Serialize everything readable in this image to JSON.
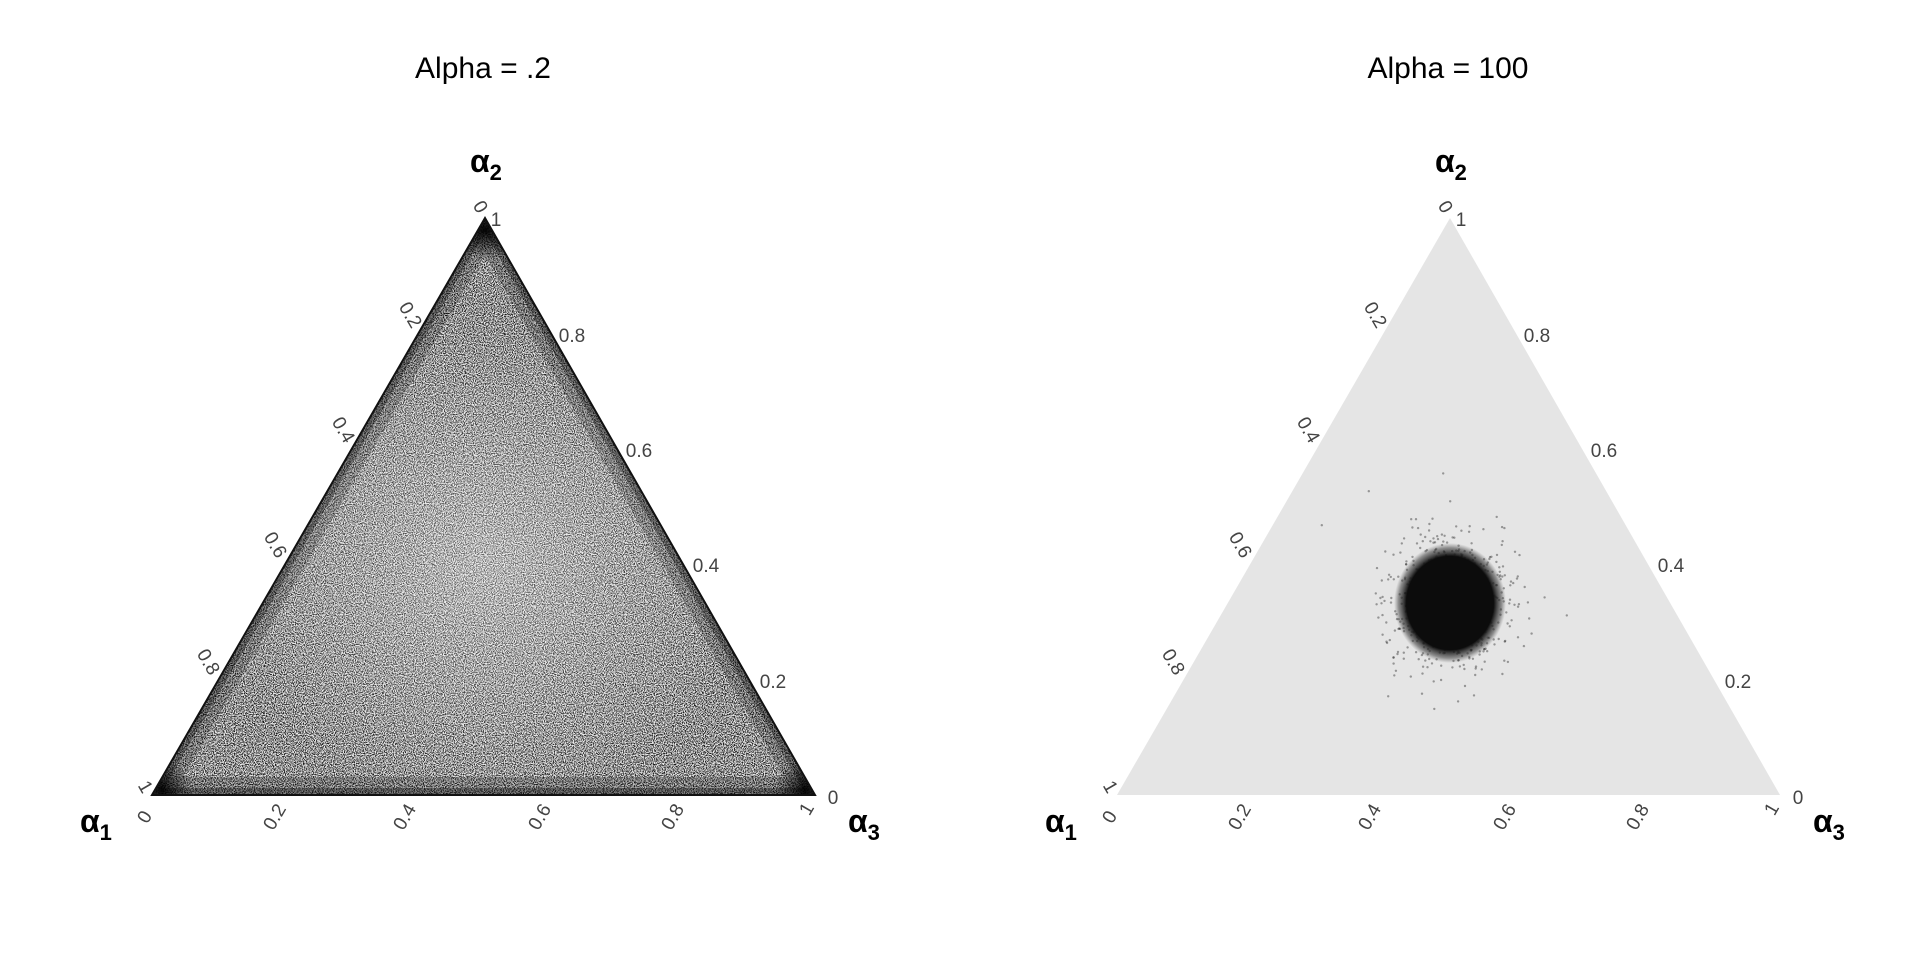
{
  "chart_data": [
    {
      "type": "scatter",
      "subtype": "ternary",
      "title": "Alpha = .2",
      "concentration": 0.2,
      "background": "light-gray",
      "point_color": "#000000",
      "axes": {
        "bottom": {
          "label": "α",
          "sub": "1",
          "ticks": [
            "0",
            "0.2",
            "0.4",
            "0.6",
            "0.8",
            "1"
          ]
        },
        "top": {
          "label": "α",
          "sub": "2",
          "ticks": [
            "0",
            "1"
          ]
        },
        "left": {
          "ticks": [
            "0.2",
            "0.4",
            "0.6",
            "0.8",
            "1"
          ]
        },
        "right": {
          "label": "α",
          "sub": "3",
          "ticks": [
            "1",
            "0.8",
            "0.6",
            "0.4",
            "0.2",
            "0"
          ]
        }
      },
      "distribution": "points concentrated toward vertices and edges"
    },
    {
      "type": "scatter",
      "subtype": "ternary",
      "title": "Alpha = 100",
      "concentration": 100,
      "background": "light-gray",
      "point_color": "#000000",
      "center": [
        0.333,
        0.333,
        0.333
      ],
      "axes": {
        "bottom": {
          "label": "α",
          "sub": "1",
          "ticks": [
            "0",
            "0.2",
            "0.4",
            "0.6",
            "0.8",
            "1"
          ]
        },
        "top": {
          "label": "α",
          "sub": "2",
          "ticks": [
            "0",
            "1"
          ]
        },
        "left": {
          "ticks": [
            "0.2",
            "0.4",
            "0.6",
            "0.8",
            "1"
          ]
        },
        "right": {
          "label": "α",
          "sub": "3",
          "ticks": [
            "1",
            "0.8",
            "0.6",
            "0.4",
            "0.2",
            "0"
          ]
        }
      },
      "distribution": "points tightly clustered around the centroid"
    }
  ]
}
